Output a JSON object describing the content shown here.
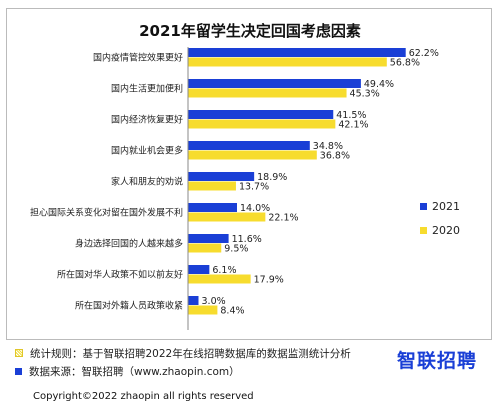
{
  "chart_data": {
    "type": "bar",
    "orientation": "horizontal",
    "title": "2021年留学生决定回国考虑因素",
    "categories": [
      "国内疫情管控效果更好",
      "国内生活更加便利",
      "国内经济恢复更好",
      "国内就业机会更多",
      "家人和朋友的劝说",
      "担心国际关系变化对留在国外发展不利",
      "身边选择回国的人越来越多",
      "所在国对华人政策不如以前友好",
      "所在国对外籍人员政策收紧"
    ],
    "series": [
      {
        "name": "2021",
        "color": "#1a3fd6",
        "values": [
          62.2,
          49.4,
          41.5,
          34.8,
          18.9,
          14.0,
          11.6,
          6.1,
          3.0
        ]
      },
      {
        "name": "2020",
        "color": "#f7dc2e",
        "values": [
          56.8,
          45.3,
          42.1,
          36.8,
          13.7,
          22.1,
          9.5,
          17.9,
          8.4
        ]
      }
    ],
    "value_suffix": "%",
    "xlim": [
      0,
      70
    ],
    "grid": false,
    "legend_position": "right"
  },
  "footer": {
    "rule": "统计规则：基于智联招聘2022年在线招聘数据库的数据监测统计分析",
    "source": "数据来源：智联招聘（www.zhaopin.com）",
    "logo": "智联招聘",
    "copyright": "Copyright©2022 zhaopin all rights reserved"
  }
}
